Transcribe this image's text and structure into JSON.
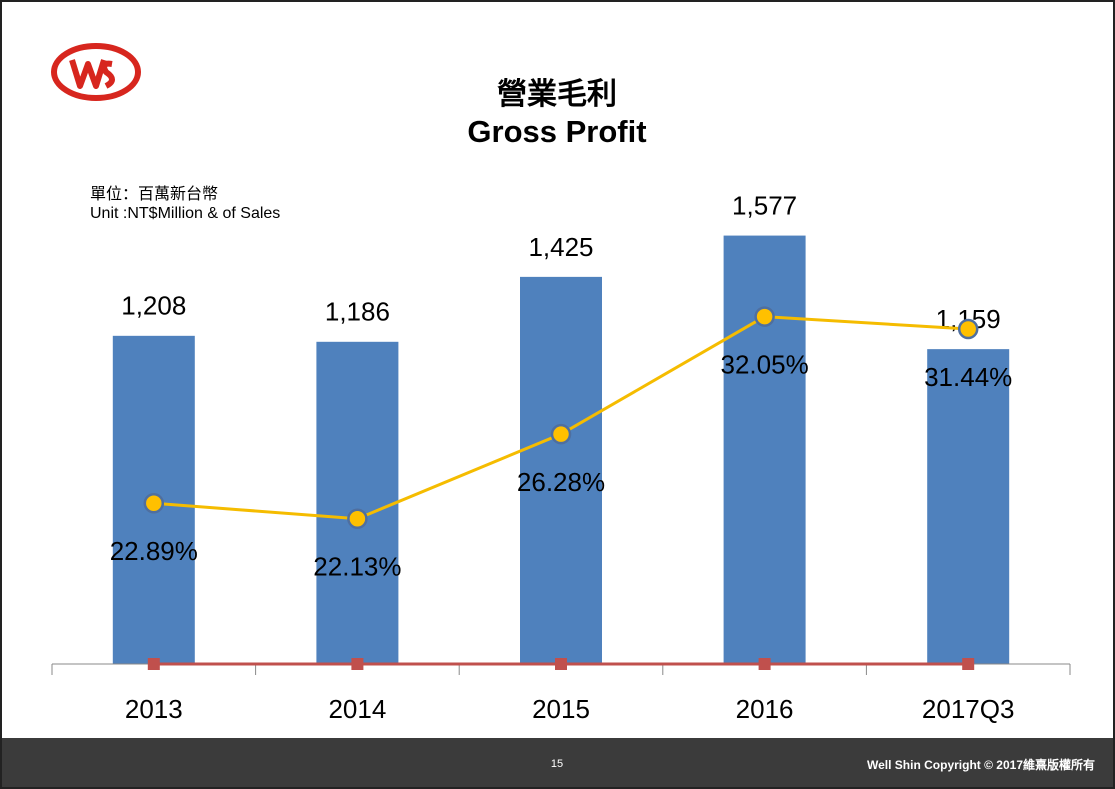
{
  "header": {
    "title": "營業毛利",
    "subtitle": "Gross Profit"
  },
  "unit": [
    "單位：百萬新台幣",
    "Unit :NT$Million & of Sales"
  ],
  "chart_data": {
    "type": "bar",
    "categories": [
      "2013",
      "2014",
      "2015",
      "2016",
      "2017Q3"
    ],
    "ylim": [
      0,
      1800
    ],
    "y2lim": [
      15,
      39
    ],
    "series": [
      {
        "type": "bar",
        "color": "#4f81bd",
        "values": [
          1208,
          1186,
          1425,
          1577,
          1159
        ],
        "value_labels": [
          "1,208",
          "1,186",
          "1,425",
          "1,577",
          "1,159"
        ]
      },
      {
        "type": "line",
        "axis": "y2",
        "color": "#f5bc00",
        "values": [
          22.89,
          22.13,
          26.28,
          32.05,
          31.44
        ],
        "value_labels": [
          "22.89%",
          "22.13%",
          "26.28%",
          "32.05%",
          "31.44%"
        ]
      },
      {
        "type": "line",
        "color": "#c0504d",
        "values": [
          0,
          0,
          0,
          0,
          0
        ]
      }
    ]
  },
  "footer": {
    "page": "15",
    "copyright": "Well Shin Copyright © 2017維熹版權所有"
  }
}
